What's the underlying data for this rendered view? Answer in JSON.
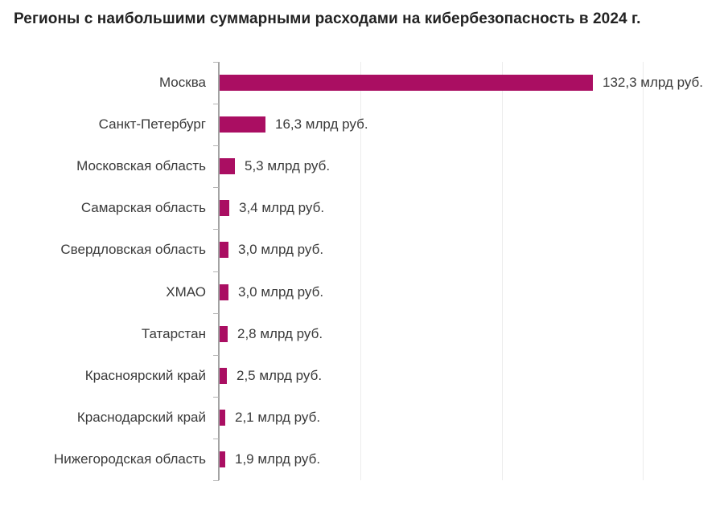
{
  "title": "Регионы с наибольшими суммарными расходами на кибербезопасность в 2024 г.",
  "chart_data": {
    "type": "bar",
    "orientation": "horizontal",
    "title": "Регионы с наибольшими суммарными расходами на кибербезопасность в 2024 г.",
    "categories": [
      "Москва",
      "Санкт-Петербург",
      "Московская область",
      "Самарская область",
      "Свердловская область",
      "ХМАО",
      "Татарстан",
      "Красноярский край",
      "Краснодарский край",
      "Нижегородская область"
    ],
    "values": [
      132.3,
      16.3,
      5.3,
      3.4,
      3.0,
      3.0,
      2.8,
      2.5,
      2.1,
      1.9
    ],
    "value_labels": [
      "132,3 млрд руб.",
      "16,3 млрд руб.",
      "5,3 млрд руб.",
      "3,4 млрд руб.",
      "3,0 млрд руб.",
      "3,0 млрд руб.",
      "2,8 млрд руб.",
      "2,5 млрд руб.",
      "2,1 млрд руб.",
      "1,9 млрд руб."
    ],
    "unit": "млрд руб.",
    "xlabel": "",
    "ylabel": "",
    "xlim": [
      0,
      160
    ],
    "gridline_step": 50,
    "grid": "vertical-light",
    "legend": "none",
    "bar_color": "#aa0e62",
    "axis_color": "#a3a3a3",
    "grid_color": "#ececec",
    "text_color": "#3a3a3a",
    "title_color": "#222222",
    "background_color": "#ffffff"
  }
}
